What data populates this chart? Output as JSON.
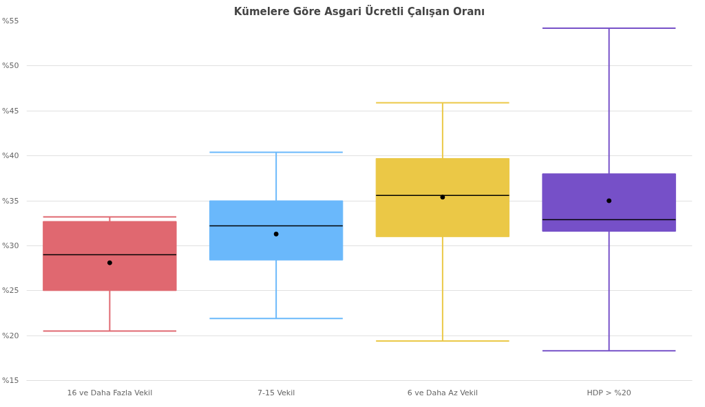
{
  "chart_data": {
    "type": "box",
    "title": "Kümelere Göre Asgari Ücretli Çalışan Oranı",
    "categories": [
      "16 ve Daha Fazla Vekil",
      "7-15 Vekil",
      "6 ve Daha Az Vekil",
      "HDP > %20"
    ],
    "colors": [
      "#e06870",
      "#6ab8fb",
      "#ebc846",
      "#7650c8"
    ],
    "boxes": [
      {
        "low": 20.5,
        "q1": 25.0,
        "median": 29.0,
        "q3": 32.7,
        "high": 33.2,
        "mean": 28.1
      },
      {
        "low": 21.9,
        "q1": 28.4,
        "median": 32.2,
        "q3": 35.0,
        "high": 40.4,
        "mean": 31.3
      },
      {
        "low": 19.4,
        "q1": 31.0,
        "median": 35.6,
        "q3": 39.7,
        "high": 45.9,
        "mean": 35.4
      },
      {
        "low": 18.3,
        "q1": 31.6,
        "median": 32.9,
        "q3": 38.0,
        "high": 54.2,
        "mean": 35.0
      }
    ],
    "ylim": [
      15,
      55
    ],
    "yticks": [
      {
        "value": 15,
        "label": "%15"
      },
      {
        "value": 20,
        "label": "%20"
      },
      {
        "value": 25,
        "label": "%25"
      },
      {
        "value": 30,
        "label": "%30"
      },
      {
        "value": 35,
        "label": "%35"
      },
      {
        "value": 40,
        "label": "%40"
      },
      {
        "value": 45,
        "label": "%45"
      },
      {
        "value": 50,
        "label": "%50"
      },
      {
        "value": 55,
        "label": "%55"
      }
    ],
    "grid": "y"
  }
}
